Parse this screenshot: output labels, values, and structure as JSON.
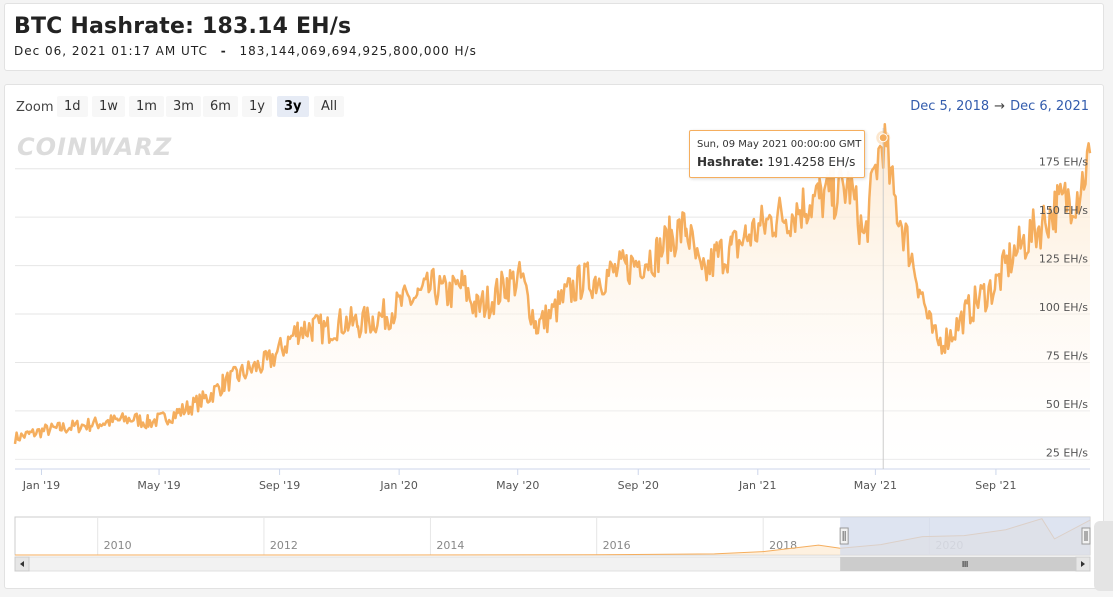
{
  "header": {
    "title": "BTC Hashrate: 183.14 EH/s",
    "timestamp": "Dec 06, 2021 01:17 AM UTC",
    "separator": "-",
    "hashrate_full": "183,144,069,694,925,800,000 H/s"
  },
  "zoom": {
    "label": "Zoom",
    "buttons": [
      "1d",
      "1w",
      "1m",
      "3m",
      "6m",
      "1y",
      "3y",
      "All"
    ],
    "active": "3y"
  },
  "range": {
    "from": "Dec 5, 2018",
    "arrow": "→",
    "to": "Dec 6, 2021"
  },
  "watermark": "COINWARZ",
  "tooltip": {
    "date": "Sun, 09 May 2021 00:00:00 GMT",
    "series_label": "Hashrate",
    "value": "191.4258 EH/s"
  },
  "colors": {
    "line": "#f5ae5e",
    "fill_top": "#fde7cc",
    "accent": "#335cad",
    "navigator_mask": "#d3dbec"
  },
  "chart_data": {
    "type": "line",
    "x_start": "2018-12-05",
    "x_end": "2021-12-06",
    "y_min": 20,
    "y_max": 195,
    "y_ticks": [
      {
        "value": 25,
        "label": "25 EH/s"
      },
      {
        "value": 50,
        "label": "50 EH/s"
      },
      {
        "value": 75,
        "label": "75 EH/s"
      },
      {
        "value": 100,
        "label": "100 EH/s"
      },
      {
        "value": 125,
        "label": "125 EH/s"
      },
      {
        "value": 150,
        "label": "150 EH/s"
      },
      {
        "value": 175,
        "label": "175 EH/s"
      }
    ],
    "x_ticks": [
      {
        "date": "2019-01-01",
        "label": "Jan '19"
      },
      {
        "date": "2019-05-01",
        "label": "May '19"
      },
      {
        "date": "2019-09-01",
        "label": "Sep '19"
      },
      {
        "date": "2020-01-01",
        "label": "Jan '20"
      },
      {
        "date": "2020-05-01",
        "label": "May '20"
      },
      {
        "date": "2020-09-01",
        "label": "Sep '20"
      },
      {
        "date": "2021-01-01",
        "label": "Jan '21"
      },
      {
        "date": "2021-05-01",
        "label": "May '21"
      },
      {
        "date": "2021-09-01",
        "label": "Sep '21"
      }
    ],
    "series": [
      {
        "name": "Hashrate",
        "points": [
          [
            "2018-12-05",
            36
          ],
          [
            "2018-12-20",
            38
          ],
          [
            "2019-01-05",
            40
          ],
          [
            "2019-01-20",
            41
          ],
          [
            "2019-02-05",
            42
          ],
          [
            "2019-02-20",
            43
          ],
          [
            "2019-03-05",
            44
          ],
          [
            "2019-03-20",
            45
          ],
          [
            "2019-04-05",
            46
          ],
          [
            "2019-04-20",
            44
          ],
          [
            "2019-05-05",
            46
          ],
          [
            "2019-05-20",
            49
          ],
          [
            "2019-06-05",
            53
          ],
          [
            "2019-06-20",
            57
          ],
          [
            "2019-07-05",
            64
          ],
          [
            "2019-07-20",
            68
          ],
          [
            "2019-08-05",
            72
          ],
          [
            "2019-08-20",
            75
          ],
          [
            "2019-09-05",
            83
          ],
          [
            "2019-09-20",
            92
          ],
          [
            "2019-10-05",
            93
          ],
          [
            "2019-10-20",
            92
          ],
          [
            "2019-11-05",
            96
          ],
          [
            "2019-11-20",
            95
          ],
          [
            "2019-12-05",
            97
          ],
          [
            "2019-12-20",
            100
          ],
          [
            "2020-01-05",
            106
          ],
          [
            "2020-01-20",
            109
          ],
          [
            "2020-02-05",
            114
          ],
          [
            "2020-02-20",
            110
          ],
          [
            "2020-03-05",
            115
          ],
          [
            "2020-03-20",
            103
          ],
          [
            "2020-04-05",
            108
          ],
          [
            "2020-04-20",
            116
          ],
          [
            "2020-05-05",
            118
          ],
          [
            "2020-05-20",
            94
          ],
          [
            "2020-06-05",
            100
          ],
          [
            "2020-06-20",
            110
          ],
          [
            "2020-07-05",
            117
          ],
          [
            "2020-07-20",
            118
          ],
          [
            "2020-08-05",
            121
          ],
          [
            "2020-08-20",
            124
          ],
          [
            "2020-09-05",
            128
          ],
          [
            "2020-09-20",
            131
          ],
          [
            "2020-10-05",
            140
          ],
          [
            "2020-10-20",
            145
          ],
          [
            "2020-11-05",
            118
          ],
          [
            "2020-11-20",
            130
          ],
          [
            "2020-12-05",
            133
          ],
          [
            "2020-12-20",
            140
          ],
          [
            "2021-01-05",
            145
          ],
          [
            "2021-01-20",
            150
          ],
          [
            "2021-02-05",
            152
          ],
          [
            "2021-02-20",
            157
          ],
          [
            "2021-03-05",
            160
          ],
          [
            "2021-03-20",
            162
          ],
          [
            "2021-04-05",
            166
          ],
          [
            "2021-04-20",
            138
          ],
          [
            "2021-05-01",
            175
          ],
          [
            "2021-05-09",
            191
          ],
          [
            "2021-05-20",
            160
          ],
          [
            "2021-06-01",
            140
          ],
          [
            "2021-06-15",
            115
          ],
          [
            "2021-06-25",
            95
          ],
          [
            "2021-07-03",
            85
          ],
          [
            "2021-07-15",
            88
          ],
          [
            "2021-08-01",
            100
          ],
          [
            "2021-08-15",
            108
          ],
          [
            "2021-09-01",
            115
          ],
          [
            "2021-09-15",
            128
          ],
          [
            "2021-10-01",
            138
          ],
          [
            "2021-10-15",
            145
          ],
          [
            "2021-11-01",
            155
          ],
          [
            "2021-11-15",
            160
          ],
          [
            "2021-11-25",
            163
          ],
          [
            "2021-12-06",
            183
          ]
        ]
      }
    ]
  },
  "navigator": {
    "labels": [
      "2010",
      "2012",
      "2014",
      "2016",
      "2018",
      "2020"
    ],
    "selection": {
      "from": "2018-12-05",
      "to": "2021-12-06"
    },
    "points": [
      [
        "2009-01-03",
        0
      ],
      [
        "2013-01-01",
        0
      ],
      [
        "2016-01-01",
        0.8
      ],
      [
        "2017-06-01",
        6
      ],
      [
        "2018-01-01",
        18
      ],
      [
        "2018-09-01",
        52
      ],
      [
        "2018-12-05",
        36
      ],
      [
        "2019-06-01",
        55
      ],
      [
        "2019-12-01",
        97
      ],
      [
        "2020-06-01",
        102
      ],
      [
        "2020-12-01",
        133
      ],
      [
        "2021-05-09",
        191
      ],
      [
        "2021-07-03",
        85
      ],
      [
        "2021-12-06",
        183
      ]
    ]
  }
}
